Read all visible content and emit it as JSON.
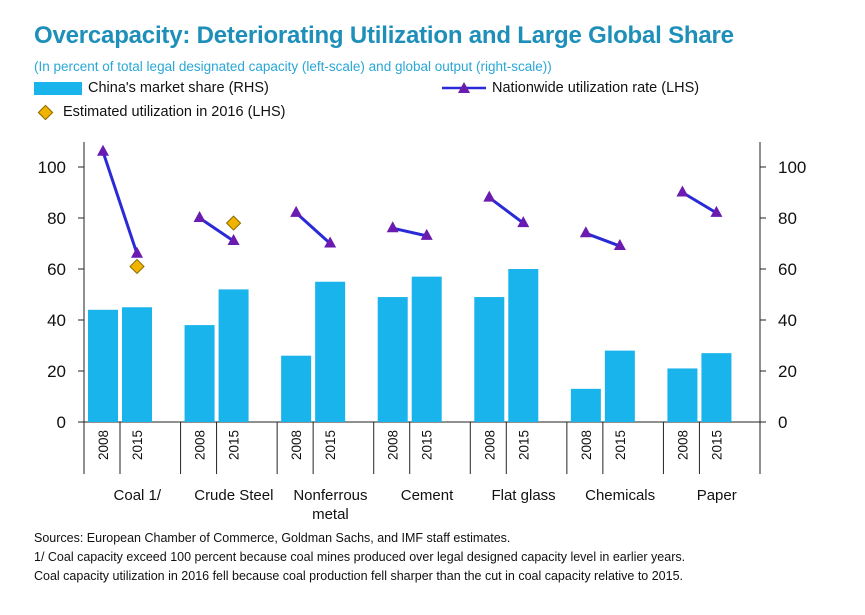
{
  "title": "Overcapacity: Deteriorating Utilization and Large Global Share",
  "subtitle": "(In percent of total legal designated capacity (left-scale) and global output (right-scale))",
  "legend": {
    "market_share": "China's market share (RHS)",
    "utilization": "Nationwide utilization rate (LHS)",
    "estimated": "Estimated utilization in 2016 (LHS)"
  },
  "footnotes": {
    "sources": "Sources: European Chamber of Commerce, Goldman Sachs, and IMF staff estimates.",
    "note1": "1/ Coal capacity exceed 100 percent because coal mines produced over legal designed capacity level in earlier years.",
    "note2": "Coal capacity utilization in 2016 fell because coal production fell sharper than the cut in coal capacity relative to 2015."
  },
  "colors": {
    "bar": "#19b4ec",
    "line": "#2a2ad6",
    "marker": "#6a1bb0",
    "diamond": "#f0b400",
    "title": "#1d8fb8"
  },
  "chart_data": {
    "type": "bar",
    "groups": [
      {
        "label": "Coal 1/",
        "label_lines": [
          "Coal 1/"
        ]
      },
      {
        "label": "Crude Steel",
        "label_lines": [
          "Crude Steel"
        ]
      },
      {
        "label": "Nonferrous metal",
        "label_lines": [
          "Nonferrous",
          "metal"
        ]
      },
      {
        "label": "Cement",
        "label_lines": [
          "Cement"
        ]
      },
      {
        "label": "Flat glass",
        "label_lines": [
          "Flat glass"
        ]
      },
      {
        "label": "Chemicals",
        "label_lines": [
          "Chemicals"
        ]
      },
      {
        "label": "Paper",
        "label_lines": [
          "Paper"
        ]
      }
    ],
    "years": [
      "2008",
      "2015"
    ],
    "series": [
      {
        "name": "China's market share (RHS)",
        "kind": "bar",
        "axis": "right",
        "values": [
          [
            44,
            45
          ],
          [
            38,
            52
          ],
          [
            26,
            55
          ],
          [
            49,
            57
          ],
          [
            49,
            60
          ],
          [
            13,
            28
          ],
          [
            21,
            27
          ]
        ]
      },
      {
        "name": "Nationwide utilization rate (LHS)",
        "kind": "line",
        "axis": "left",
        "values": [
          [
            106,
            66
          ],
          [
            80,
            71
          ],
          [
            82,
            70
          ],
          [
            76,
            73
          ],
          [
            88,
            78
          ],
          [
            74,
            69
          ],
          [
            90,
            82
          ]
        ]
      },
      {
        "name": "Estimated utilization in 2016 (LHS)",
        "kind": "scatter",
        "axis": "left",
        "points": [
          {
            "group": 0,
            "year": "2015",
            "value": 61
          },
          {
            "group": 1,
            "year": "2015",
            "value": 78
          }
        ]
      }
    ],
    "ylim_left": [
      0,
      110
    ],
    "ylim_right": [
      0,
      110
    ],
    "yticks": [
      0,
      20,
      40,
      60,
      80,
      100
    ],
    "title": "Overcapacity: Deteriorating Utilization and Large Global Share",
    "ylabel_left": "",
    "ylabel_right": ""
  }
}
